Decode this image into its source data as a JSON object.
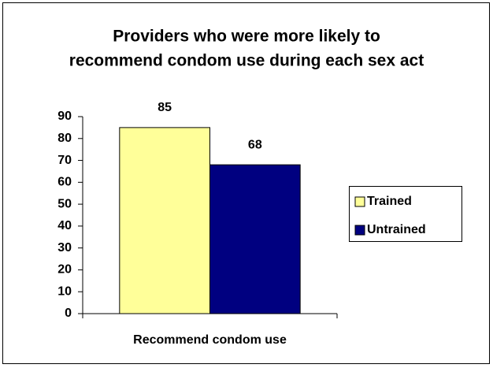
{
  "chart_data": {
    "type": "bar",
    "title": [
      "Providers who were more likely to",
      "recommend condom use during each sex act"
    ],
    "categories": [
      "Recommend condom use"
    ],
    "series": [
      {
        "name": "Trained",
        "color": "#ffff99",
        "values": [
          85
        ]
      },
      {
        "name": "Untrained",
        "color": "#000080",
        "values": [
          68
        ]
      }
    ],
    "ylim": [
      0,
      90
    ],
    "yticks": [
      0,
      10,
      20,
      30,
      40,
      50,
      60,
      70,
      80,
      90
    ],
    "legend": "right"
  }
}
